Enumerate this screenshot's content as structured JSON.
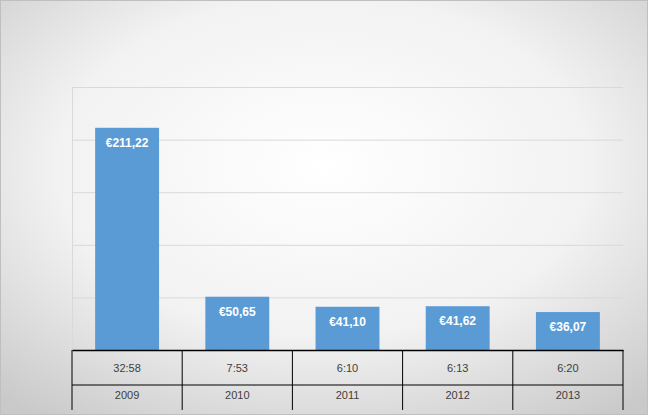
{
  "chart_data": {
    "type": "bar",
    "categories": [
      "2009",
      "2010",
      "2011",
      "2012",
      "2013"
    ],
    "durations": [
      "32:58",
      "7:53",
      "6:10",
      "6:13",
      "6:20"
    ],
    "values": [
      211.22,
      50.65,
      41.1,
      41.62,
      36.07
    ],
    "value_labels": [
      "€211,22",
      "€50,65",
      "€41,10",
      "€41,62",
      "€36,07"
    ],
    "color": "#5b9bd5",
    "ylim": [
      0,
      250
    ],
    "yticks": [
      0,
      50,
      100,
      150,
      200,
      250
    ],
    "grid": true,
    "data_labels": true,
    "tick_labels": "x"
  }
}
